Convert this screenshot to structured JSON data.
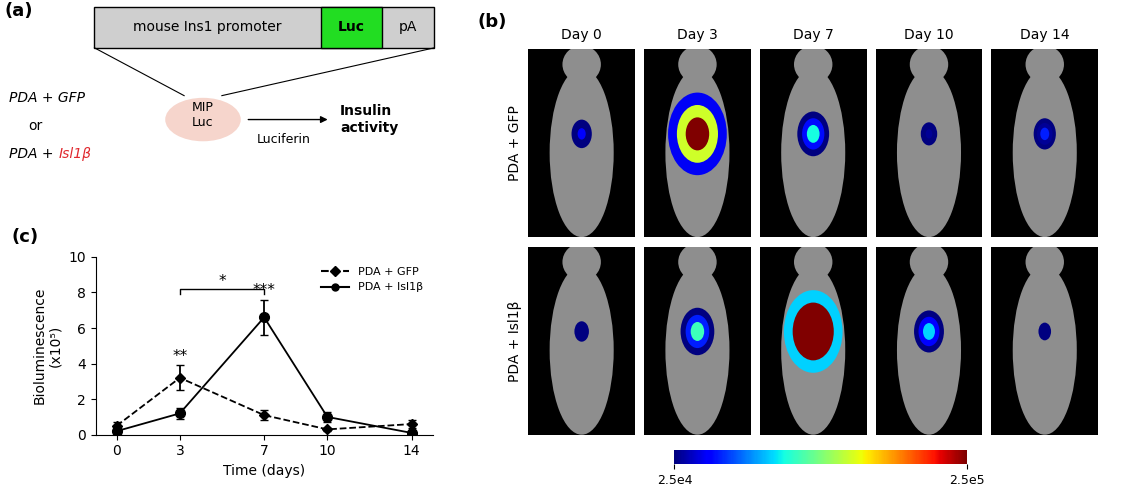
{
  "panel_a": {
    "label": "(a)",
    "construct": [
      "mouse Ins1 promoter",
      "Luc",
      "pA"
    ],
    "treatments": [
      "PDA + GFP",
      "or",
      "PDA + Isl1β"
    ],
    "highlight": "Isl1β",
    "highlight_color": "#e0282e",
    "mouse": "MIP\nLuc",
    "substrate": "Luciferin",
    "readout": "Insulin activity"
  },
  "panel_b": {
    "label": "(b)",
    "days": [
      "Day 0",
      "Day 3",
      "Day 7",
      "Day 10",
      "Day 14"
    ],
    "rows": [
      "PDA + GFP",
      "PDA + Isl1β"
    ],
    "signal_unit": 100000,
    "colorbar": {
      "range": [
        25000,
        250000
      ],
      "ticks": [
        {
          "value": 25000,
          "label": "2.5e4"
        },
        {
          "value": 250000,
          "label": "2.5e5"
        }
      ]
    }
  },
  "chart_data": {
    "label": "(c)",
    "type": "line",
    "x": [
      0,
      3,
      7,
      10,
      14
    ],
    "series": [
      {
        "name": "PDA + GFP",
        "color": "#000000",
        "line_style": "dashed",
        "marker": "D",
        "values": [
          0.5,
          3.2,
          1.1,
          0.3,
          0.6
        ],
        "errors": [
          0.2,
          0.7,
          0.3,
          0.1,
          0.2
        ]
      },
      {
        "name": "PDA + Isl1β",
        "color": "#000000",
        "line_style": "solid",
        "marker": "o",
        "values": [
          0.2,
          1.2,
          6.6,
          1.0,
          0.1
        ],
        "errors": [
          0.1,
          0.3,
          1.0,
          0.3,
          0.1
        ]
      }
    ],
    "xlabel": "Time (days)",
    "ylabel": "Bioluminescence (x10⁵)",
    "xlim": [
      -1,
      15
    ],
    "xticks": [
      0,
      3,
      7,
      10,
      14
    ],
    "ylim": [
      0,
      10
    ],
    "yticks": [
      0,
      2,
      4,
      6,
      8,
      10
    ],
    "legend": "upper right",
    "annotations": [
      {
        "text": "**",
        "x": 3,
        "series": "PDA + GFP"
      },
      {
        "text": "***",
        "x": 7,
        "series": "PDA + Isl1β"
      },
      {
        "text": "*",
        "x": [
          3,
          7
        ]
      }
    ]
  }
}
